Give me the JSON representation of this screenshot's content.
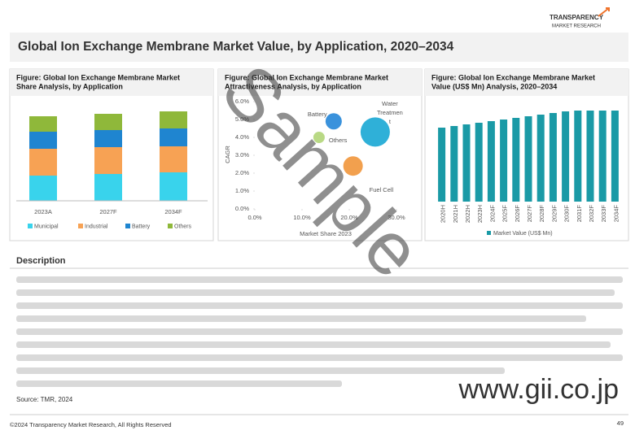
{
  "title": "Global Ion Exchange Membrane Market Value, by Application, 2020–2034",
  "logo": {
    "line1": "TRANSPARENCY",
    "line2": "MARKET RESEARCH"
  },
  "description_heading": "Description",
  "source": "Source: TMR, 2024",
  "footer": "©2024 Transparency Market Research, All Rights Reserved",
  "page_number": "49",
  "watermark": {
    "text": "Sample",
    "site": "www.gii.co.jp"
  },
  "chart_data": [
    {
      "type": "stacked-bar",
      "title": [
        "Figure: Global Ion Exchange Membrane Market",
        "Share Analysis, by Application"
      ],
      "categories": [
        "2023A",
        "2027F",
        "2034F"
      ],
      "ylim": [
        0,
        110
      ],
      "series": [
        {
          "name": "Municipal",
          "color": "#39d3ec",
          "values": [
            31,
            33,
            35
          ]
        },
        {
          "name": "Industrial",
          "color": "#f7a254",
          "values": [
            33,
            33,
            32
          ]
        },
        {
          "name": "Battery",
          "color": "#1f85d0",
          "values": [
            21,
            21,
            22
          ]
        },
        {
          "name": "Others",
          "color": "#8fb83a",
          "values": [
            19,
            20,
            21
          ]
        }
      ]
    },
    {
      "type": "bubble",
      "title": [
        "Figure: Global Ion Exchange Membrane Market",
        "Attractiveness Analysis, by Application"
      ],
      "x_label": "Market Share 2023",
      "y_label": "CAGR",
      "xlim": [
        0,
        30
      ],
      "ylim": [
        0,
        6
      ],
      "xticks": [
        {
          "value": 0,
          "label": "0.0%"
        },
        {
          "value": 10,
          "label": "10.0%"
        },
        {
          "value": 20,
          "label": "20.0%"
        },
        {
          "value": 30,
          "label": "30.0%"
        }
      ],
      "yticks": [
        {
          "value": 0,
          "label": "0.0%"
        },
        {
          "value": 1,
          "label": "1.0%"
        },
        {
          "value": 2,
          "label": "2.0%"
        },
        {
          "value": 3,
          "label": "3.0%"
        },
        {
          "value": 4,
          "label": "4.0%"
        },
        {
          "value": 5,
          "label": "5.0%"
        },
        {
          "value": 6,
          "label": "6.0%"
        }
      ],
      "series": [
        {
          "name": "Battery",
          "color": "#3a92dc",
          "x": 16.7,
          "y": 4.9,
          "size": 10
        },
        {
          "name": "Others",
          "color": "#b9d985",
          "x": 13.6,
          "y": 4.0,
          "size": 7
        },
        {
          "name": "Water Treatment",
          "color": "#2fb0d8",
          "x": 25.5,
          "y": 4.3,
          "size": 18
        },
        {
          "name": "Fuel Cell",
          "color": "#f2a04e",
          "x": 20.8,
          "y": 2.4,
          "size": 12
        }
      ]
    },
    {
      "type": "bar",
      "title": [
        "Figure: Global Ion Exchange Membrane Market",
        "Value (US$ Mn) Analysis, 2020–2034"
      ],
      "categories": [
        "2020H",
        "2021H",
        "2022H",
        "2023H",
        "2024F",
        "2025F",
        "2026F",
        "2027F",
        "2028F",
        "2029F",
        "2030F",
        "2031F",
        "2032F",
        "2033F",
        "2034F"
      ],
      "series": [
        {
          "name": "Market Value (US$ Mn)",
          "color": "#1a9aa6",
          "values": [
            91,
            93,
            95,
            97,
            99,
            101,
            103,
            105,
            107,
            109,
            111,
            112,
            112,
            112,
            112
          ]
        }
      ],
      "ylim": [
        0,
        120
      ]
    }
  ]
}
